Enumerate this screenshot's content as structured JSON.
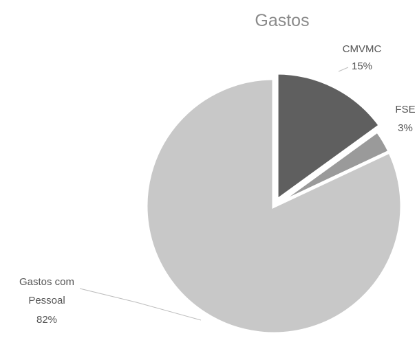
{
  "chart_data": {
    "type": "pie",
    "title": "Gastos",
    "slices": [
      {
        "name": "CMVMC",
        "value": 15,
        "label": "15%",
        "color": "#5f5f5f"
      },
      {
        "name": "FSE",
        "value": 3,
        "label": "3%",
        "color": "#9a9a9a"
      },
      {
        "name": "Gastos com Pessoal",
        "value": 82,
        "label": "82%",
        "color": "#c8c8c8",
        "label_lines": [
          "Gastos com",
          "Pessoal"
        ]
      }
    ],
    "legend": "none",
    "exploded_slice": "CMVMC"
  }
}
